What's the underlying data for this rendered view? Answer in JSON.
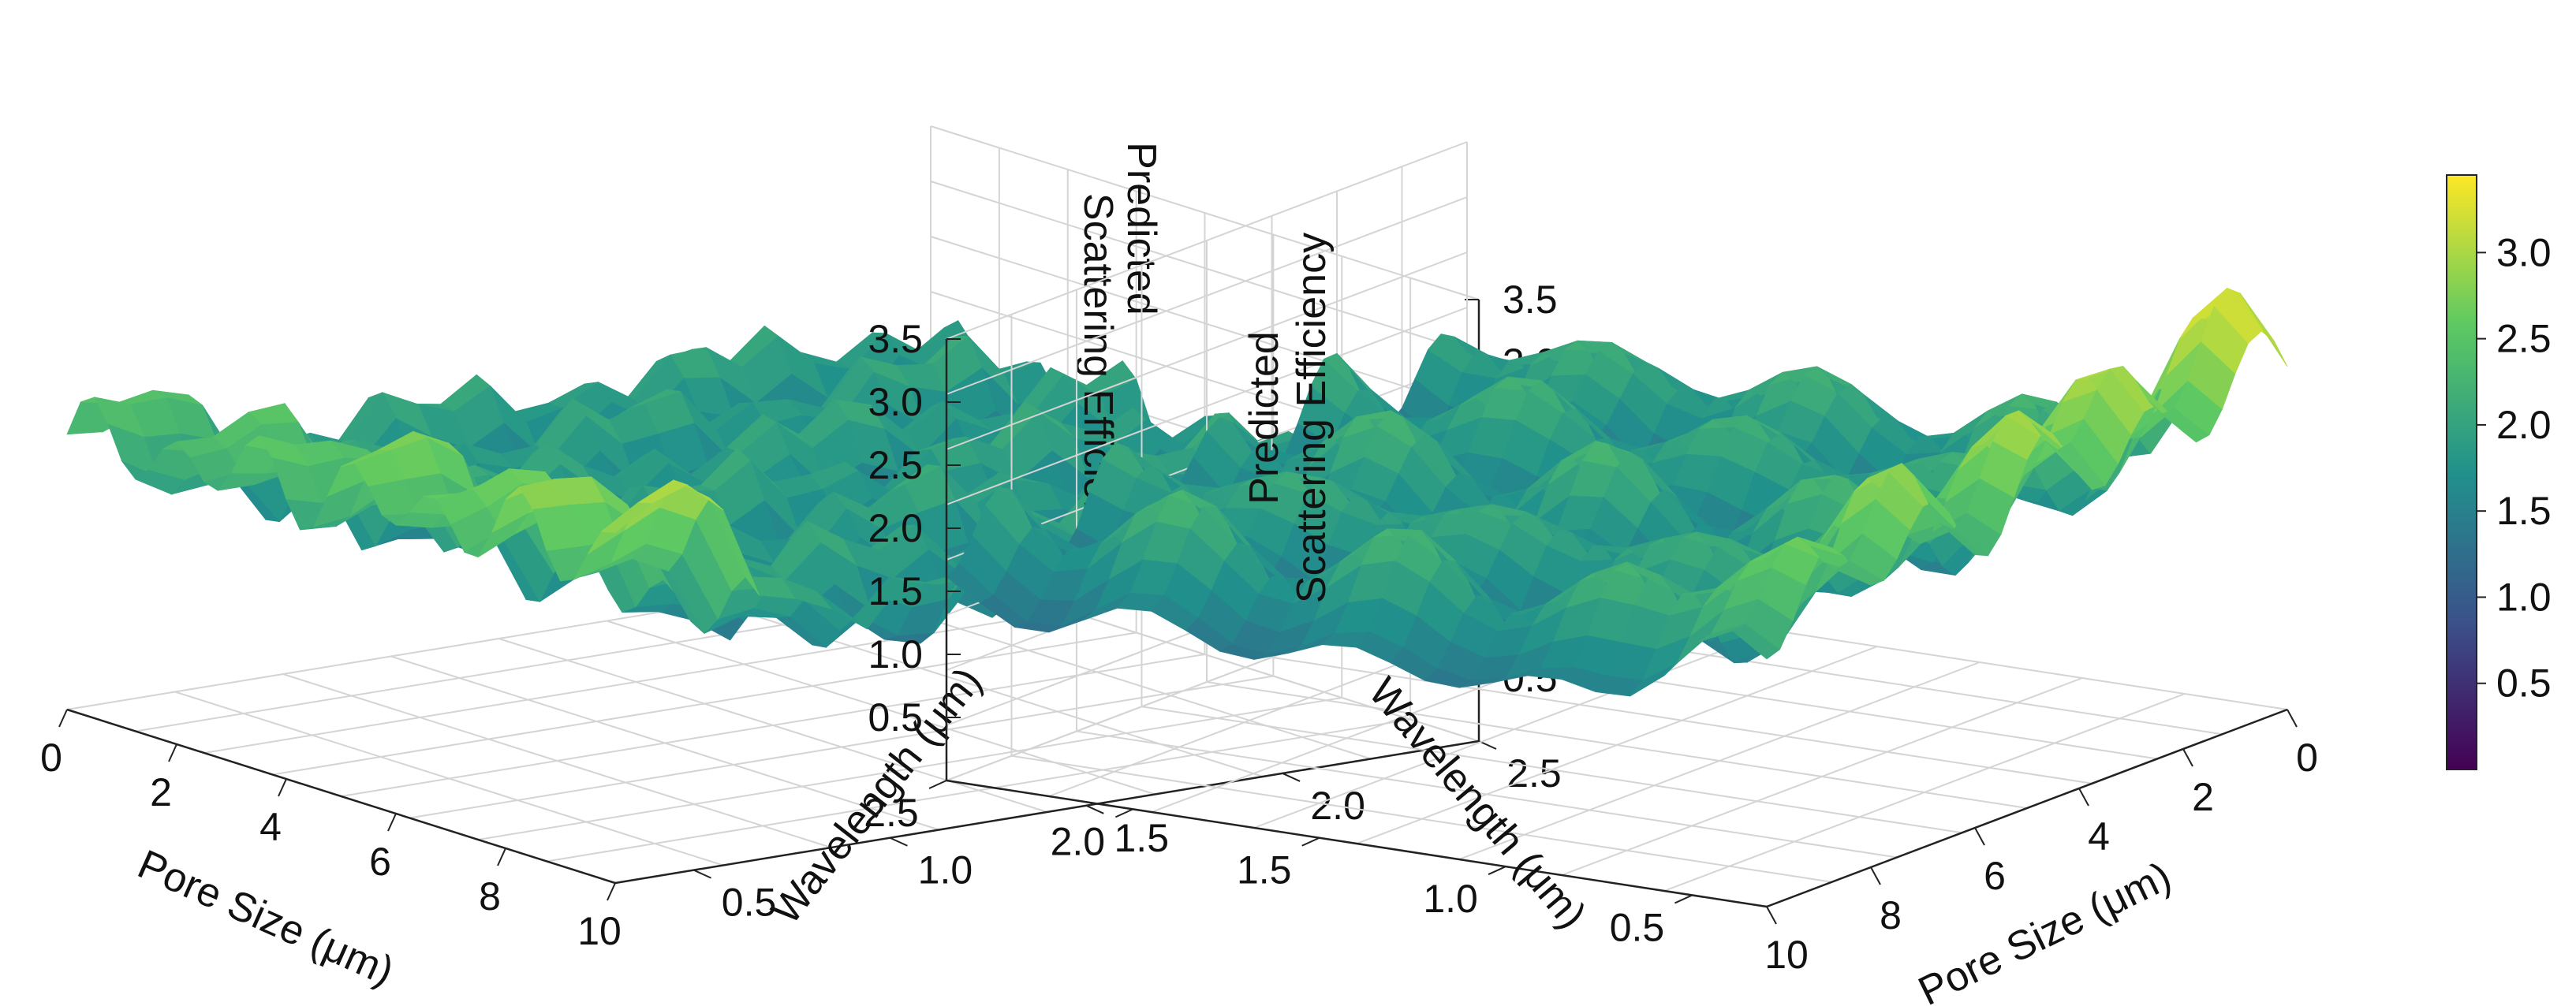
{
  "figure": {
    "colormap": "viridis",
    "colormap_stops": [
      "#440154",
      "#3b528b",
      "#21918c",
      "#5ec962",
      "#fde725"
    ]
  },
  "chart_data": [
    {
      "type": "surface3d",
      "panel": "left",
      "xlabel": "Pore Size (μm)",
      "ylabel": "Wavelength (μm)",
      "zlabel": "Predicted Scattering Efficiency",
      "zlabel_lines": [
        "Predicted",
        "Scattering Efficiency"
      ],
      "x_ticks": [
        "0",
        "2",
        "4",
        "6",
        "8",
        "10"
      ],
      "y_ticks": [
        "0.5",
        "1.0",
        "1.5",
        "2.0",
        "2.5"
      ],
      "z_ticks": [
        "0.5",
        "1.0",
        "1.5",
        "2.0",
        "2.5",
        "3.0",
        "3.5"
      ],
      "xlim": [
        0,
        10
      ],
      "ylim": [
        0.3,
        2.5
      ],
      "zlim": [
        0,
        3.5
      ],
      "grid": true,
      "view": "from low-wavelength corner, pore size axis left-to-right"
    },
    {
      "type": "surface3d",
      "panel": "right",
      "xlabel": "Pore Size (μm)",
      "ylabel": "Wavelength (μm)",
      "zlabel": "Predicted Scattering Efficiency",
      "zlabel_lines": [
        "Predicted",
        "Scattering Efficiency"
      ],
      "x_ticks": [
        "0",
        "2",
        "4",
        "6",
        "8",
        "10"
      ],
      "y_ticks": [
        "0.5",
        "1.0",
        "1.5",
        "2.0",
        "2.5"
      ],
      "z_ticks": [
        "0.5",
        "1.0",
        "1.5",
        "2.0",
        "2.5",
        "3.0",
        "3.5"
      ],
      "xlim": [
        0,
        10
      ],
      "ylim": [
        0.3,
        2.5
      ],
      "zlim": [
        0,
        3.5
      ],
      "grid": true,
      "view": "rotated, pore size axis right-to-left"
    }
  ],
  "colorbar": {
    "ticks": [
      "0.5",
      "1.0",
      "1.5",
      "2.0",
      "2.5",
      "3.0"
    ],
    "tick_values": [
      0.5,
      1.0,
      1.5,
      2.0,
      2.5,
      3.0
    ],
    "min": 0.0,
    "max": 3.45
  }
}
